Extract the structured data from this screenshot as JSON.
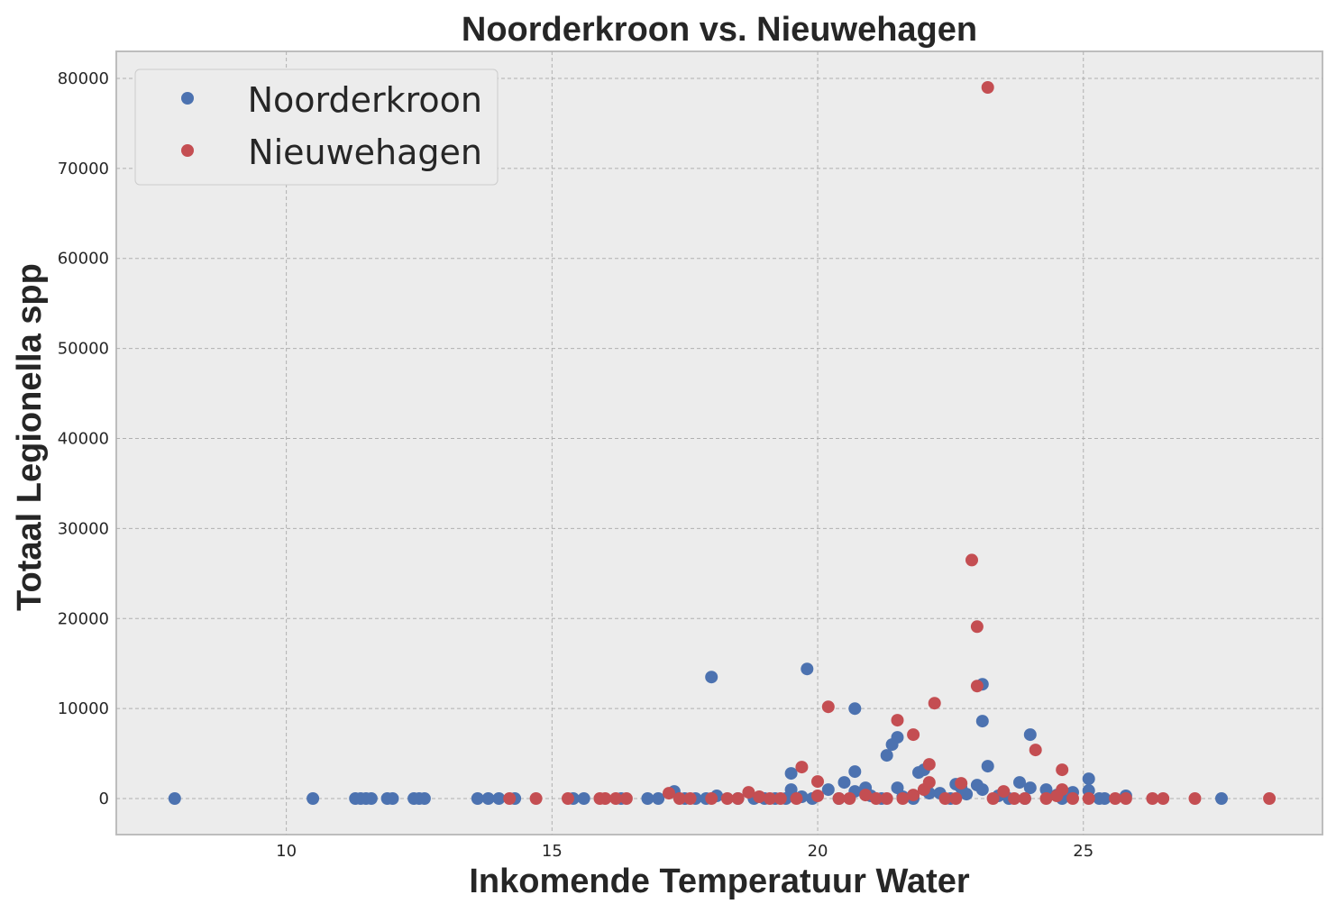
{
  "chart_data": {
    "type": "scatter",
    "title": "Noorderkroon vs. Nieuwehagen",
    "xlabel": "Inkomende Temperatuur Water",
    "ylabel": "Totaal Legionella spp",
    "xlim": [
      6.8,
      29.5
    ],
    "ylim": [
      -4000,
      83000
    ],
    "xticks": [
      10,
      15,
      20,
      25
    ],
    "yticks": [
      0,
      10000,
      20000,
      30000,
      40000,
      50000,
      60000,
      70000,
      80000
    ],
    "grid": true,
    "legend_position": "top-left",
    "series": [
      {
        "name": "Noorderkroon",
        "color": "#4c72b0",
        "points": [
          [
            7.9,
            0
          ],
          [
            10.5,
            0
          ],
          [
            11.3,
            0
          ],
          [
            11.4,
            0
          ],
          [
            11.5,
            0
          ],
          [
            11.6,
            0
          ],
          [
            11.9,
            0
          ],
          [
            12.0,
            0
          ],
          [
            12.4,
            0
          ],
          [
            12.5,
            0
          ],
          [
            12.6,
            0
          ],
          [
            13.6,
            0
          ],
          [
            13.8,
            0
          ],
          [
            14.0,
            0
          ],
          [
            14.3,
            0
          ],
          [
            15.4,
            0
          ],
          [
            15.6,
            0
          ],
          [
            16.3,
            0
          ],
          [
            16.8,
            0
          ],
          [
            17.0,
            0
          ],
          [
            17.3,
            800
          ],
          [
            17.5,
            0
          ],
          [
            17.7,
            0
          ],
          [
            17.9,
            0
          ],
          [
            18.0,
            13500
          ],
          [
            18.1,
            300
          ],
          [
            18.5,
            0
          ],
          [
            18.8,
            0
          ],
          [
            19.0,
            0
          ],
          [
            19.2,
            0
          ],
          [
            19.4,
            0
          ],
          [
            19.5,
            2800
          ],
          [
            19.5,
            1000
          ],
          [
            19.7,
            200
          ],
          [
            19.8,
            14400
          ],
          [
            19.9,
            0
          ],
          [
            20.2,
            1000
          ],
          [
            20.4,
            0
          ],
          [
            20.5,
            1800
          ],
          [
            20.7,
            3000
          ],
          [
            20.7,
            10000
          ],
          [
            20.7,
            800
          ],
          [
            20.9,
            1200
          ],
          [
            21.0,
            300
          ],
          [
            21.2,
            0
          ],
          [
            21.3,
            4800
          ],
          [
            21.4,
            6000
          ],
          [
            21.5,
            6800
          ],
          [
            21.5,
            1200
          ],
          [
            21.6,
            200
          ],
          [
            21.8,
            0
          ],
          [
            21.9,
            2900
          ],
          [
            22.0,
            3200
          ],
          [
            22.1,
            600
          ],
          [
            22.3,
            600
          ],
          [
            22.5,
            0
          ],
          [
            22.6,
            1600
          ],
          [
            22.7,
            1200
          ],
          [
            22.8,
            500
          ],
          [
            23.0,
            1500
          ],
          [
            23.1,
            12700
          ],
          [
            23.1,
            8600
          ],
          [
            23.1,
            1000
          ],
          [
            23.2,
            3600
          ],
          [
            23.4,
            300
          ],
          [
            23.6,
            0
          ],
          [
            23.8,
            1800
          ],
          [
            23.9,
            0
          ],
          [
            24.0,
            7100
          ],
          [
            24.0,
            1200
          ],
          [
            24.3,
            1000
          ],
          [
            24.5,
            400
          ],
          [
            24.6,
            0
          ],
          [
            24.8,
            700
          ],
          [
            25.1,
            2200
          ],
          [
            25.1,
            900
          ],
          [
            25.3,
            0
          ],
          [
            25.4,
            0
          ],
          [
            25.8,
            300
          ],
          [
            27.6,
            0
          ]
        ]
      },
      {
        "name": "Nieuwehagen",
        "color": "#c44e52",
        "points": [
          [
            14.2,
            0
          ],
          [
            14.7,
            0
          ],
          [
            15.3,
            0
          ],
          [
            15.9,
            0
          ],
          [
            16.0,
            0
          ],
          [
            16.2,
            0
          ],
          [
            16.4,
            0
          ],
          [
            17.2,
            600
          ],
          [
            17.4,
            0
          ],
          [
            17.6,
            0
          ],
          [
            18.0,
            0
          ],
          [
            18.3,
            0
          ],
          [
            18.5,
            0
          ],
          [
            18.7,
            700
          ],
          [
            18.9,
            200
          ],
          [
            19.1,
            0
          ],
          [
            19.3,
            0
          ],
          [
            19.6,
            0
          ],
          [
            19.7,
            3500
          ],
          [
            20.0,
            1900
          ],
          [
            20.0,
            300
          ],
          [
            20.2,
            10200
          ],
          [
            20.4,
            0
          ],
          [
            20.6,
            0
          ],
          [
            20.9,
            400
          ],
          [
            21.1,
            0
          ],
          [
            21.3,
            0
          ],
          [
            21.5,
            8700
          ],
          [
            21.6,
            0
          ],
          [
            21.8,
            7100
          ],
          [
            21.8,
            400
          ],
          [
            22.0,
            1000
          ],
          [
            22.1,
            1800
          ],
          [
            22.1,
            3800
          ],
          [
            22.2,
            10600
          ],
          [
            22.4,
            0
          ],
          [
            22.6,
            0
          ],
          [
            22.7,
            1700
          ],
          [
            22.9,
            26500
          ],
          [
            23.0,
            19100
          ],
          [
            23.0,
            12500
          ],
          [
            23.2,
            79000
          ],
          [
            23.3,
            0
          ],
          [
            23.5,
            800
          ],
          [
            23.7,
            0
          ],
          [
            23.9,
            0
          ],
          [
            24.1,
            5400
          ],
          [
            24.3,
            0
          ],
          [
            24.5,
            300
          ],
          [
            24.6,
            3200
          ],
          [
            24.6,
            1000
          ],
          [
            24.8,
            0
          ],
          [
            25.1,
            0
          ],
          [
            25.6,
            0
          ],
          [
            25.8,
            0
          ],
          [
            26.3,
            0
          ],
          [
            26.5,
            0
          ],
          [
            27.1,
            0
          ],
          [
            28.5,
            0
          ]
        ]
      }
    ]
  }
}
